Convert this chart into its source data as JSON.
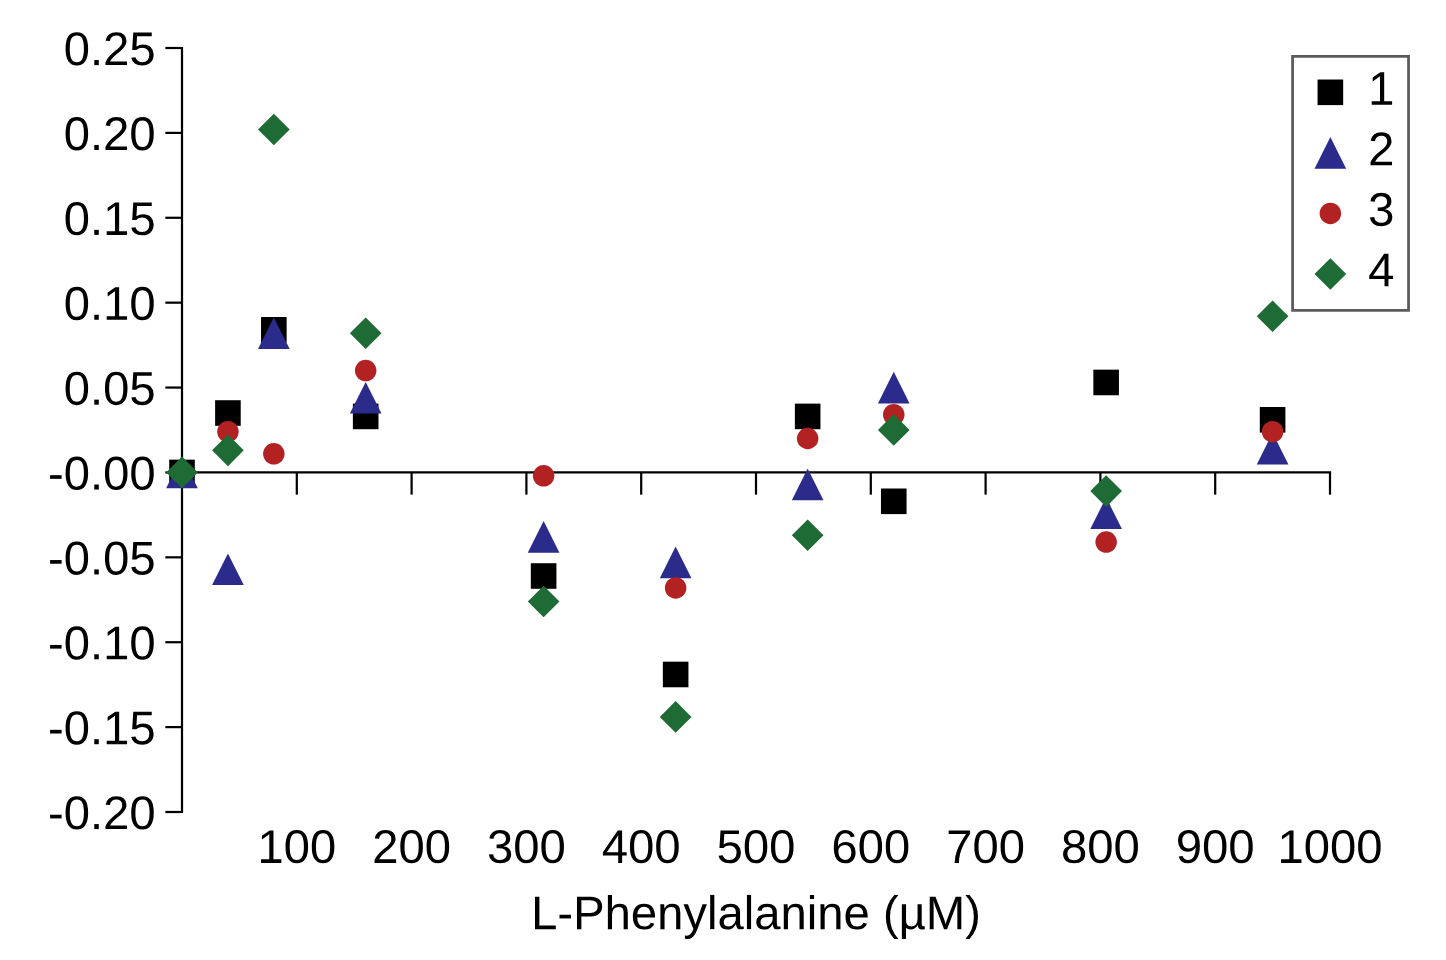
{
  "chart_data": {
    "type": "scatter",
    "xlabel": "L-Phenylalanine (µM)",
    "x": [
      0,
      40,
      80,
      160,
      315,
      430,
      545,
      620,
      805,
      950
    ],
    "series": [
      {
        "name": "1",
        "color": "#000000",
        "marker": "square",
        "values": [
          0,
          0.035,
          0.084,
          0.033,
          -0.061,
          -0.119,
          0.033,
          -0.017,
          0.053,
          0.031
        ]
      },
      {
        "name": "2",
        "color": "#2b2b8c",
        "marker": "triangle",
        "values": [
          0,
          -0.057,
          0.082,
          0.044,
          -0.038,
          -0.053,
          -0.007,
          0.05,
          -0.024,
          0.014
        ]
      },
      {
        "name": "3",
        "color": "#b22222",
        "marker": "circle",
        "values": [
          null,
          0.024,
          0.011,
          0.06,
          -0.002,
          -0.068,
          0.02,
          0.034,
          -0.041,
          0.024
        ]
      },
      {
        "name": "4",
        "color": "#1e6b35",
        "marker": "diamond",
        "values": [
          0,
          0.013,
          0.202,
          0.082,
          -0.076,
          -0.144,
          -0.037,
          0.025,
          -0.011,
          0.092
        ]
      }
    ],
    "xlim": [
      0,
      1000
    ],
    "xticks": [
      100,
      200,
      300,
      400,
      500,
      600,
      700,
      800,
      900,
      1000
    ],
    "ylim": [
      -0.2,
      0.25
    ],
    "yticks": [
      {
        "value": -0.2,
        "label": "-0.20"
      },
      {
        "value": -0.15,
        "label": "-0.15"
      },
      {
        "value": -0.1,
        "label": "-0.10"
      },
      {
        "value": -0.05,
        "label": "-0.05"
      },
      {
        "value": 0,
        "label": "-0.00"
      },
      {
        "value": 0.05,
        "label": "0.05"
      },
      {
        "value": 0.1,
        "label": "0.10"
      },
      {
        "value": 0.15,
        "label": "0.15"
      },
      {
        "value": 0.2,
        "label": "0.20"
      },
      {
        "value": 0.25,
        "label": "0.25"
      }
    ],
    "legend": "top right"
  }
}
